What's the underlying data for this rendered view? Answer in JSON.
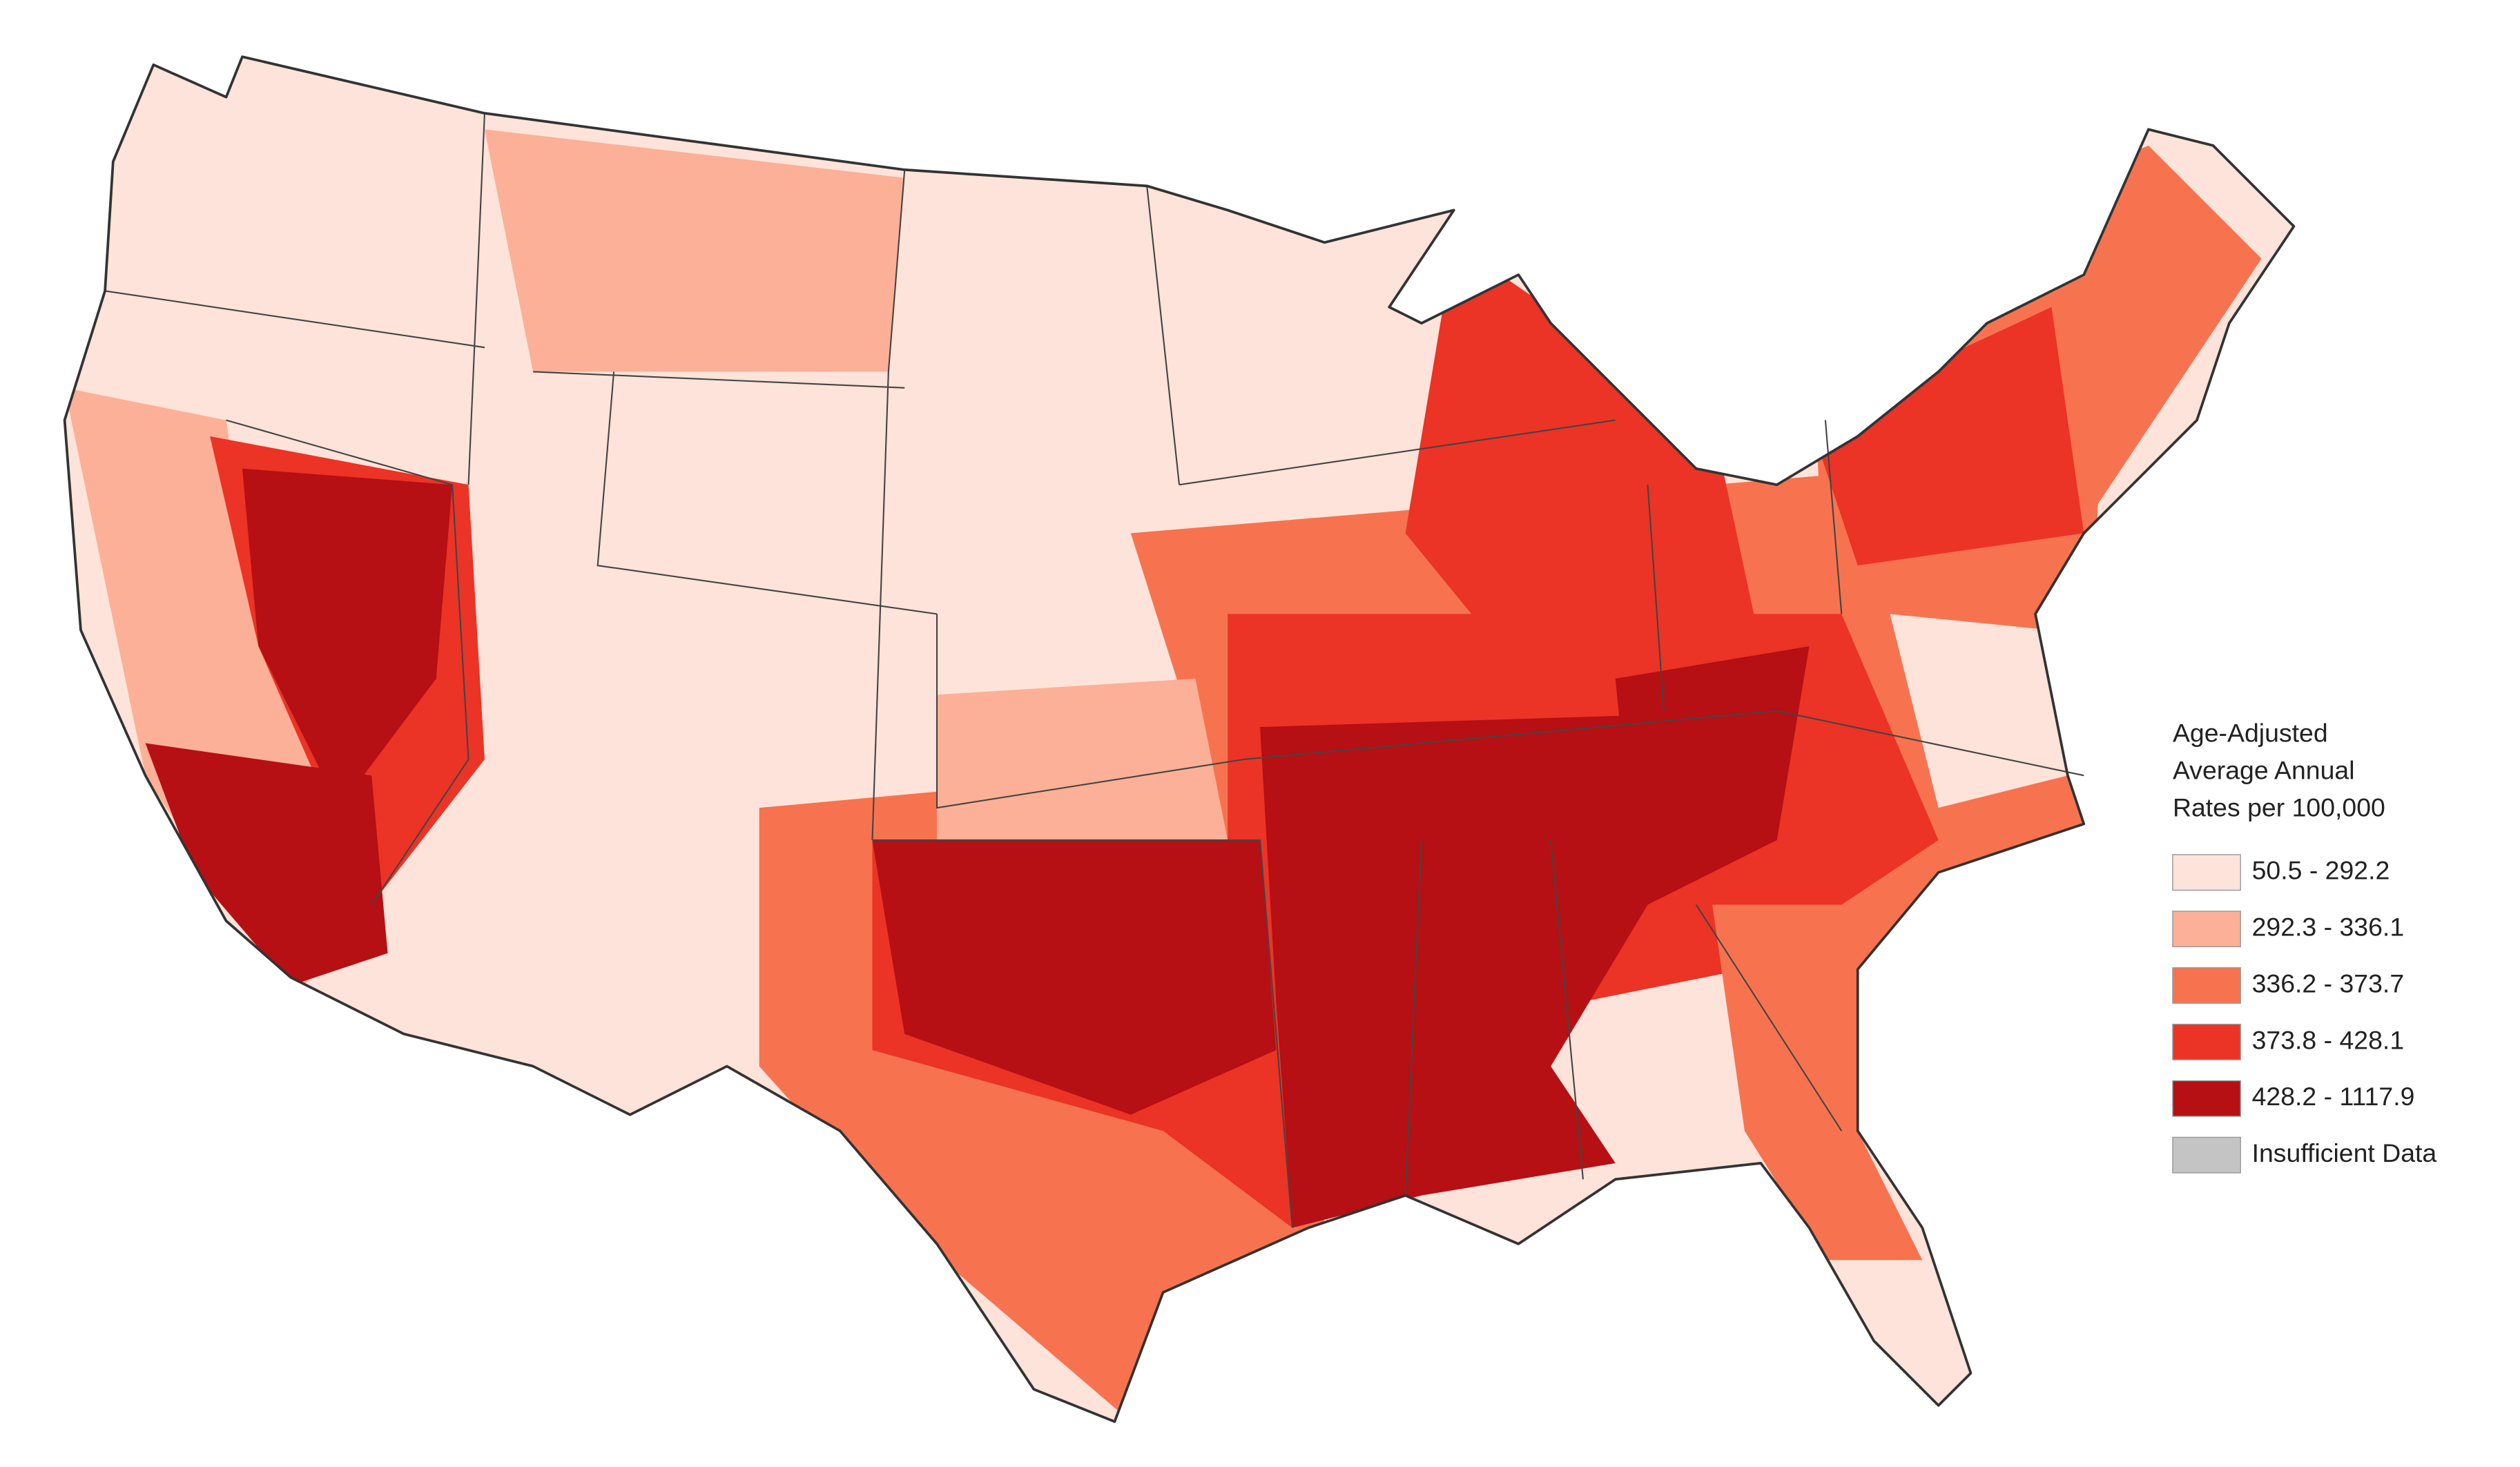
{
  "legend": {
    "title_lines": [
      "Age-Adjusted",
      "Average Annual",
      "Rates per 100,000"
    ],
    "items": [
      {
        "label": "50.5 - 292.2",
        "color": "#fde3d9"
      },
      {
        "label": "292.3 - 336.1",
        "color": "#fbb097"
      },
      {
        "label": "336.2 - 373.7",
        "color": "#f7734f"
      },
      {
        "label": "373.8 - 428.1",
        "color": "#eb3326"
      },
      {
        "label": "428.2 - 1117.9",
        "color": "#b60f14"
      },
      {
        "label": "Insufficient Data",
        "color": "#c4c4c4"
      }
    ]
  }
}
